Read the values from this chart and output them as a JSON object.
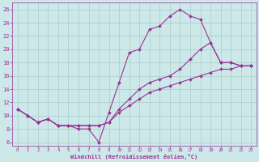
{
  "bg_color": "#cce8e8",
  "grid_color": "#aacccc",
  "line_color": "#993399",
  "xlabel": "Windchill (Refroidissement éolien,°C)",
  "xlim": [
    -0.5,
    23.5
  ],
  "ylim": [
    5.5,
    27
  ],
  "yticks": [
    6,
    8,
    10,
    12,
    14,
    16,
    18,
    20,
    22,
    24,
    26
  ],
  "xticks": [
    0,
    1,
    2,
    3,
    4,
    5,
    6,
    7,
    8,
    9,
    10,
    11,
    12,
    13,
    14,
    15,
    16,
    17,
    18,
    19,
    20,
    21,
    22,
    23
  ],
  "curve1_x": [
    0,
    1,
    2,
    3,
    4,
    5,
    6,
    7,
    8,
    9,
    10,
    11,
    12,
    13,
    14,
    15,
    16,
    17,
    18,
    19,
    20,
    21,
    22,
    23
  ],
  "curve1_y": [
    11,
    10,
    9,
    9.5,
    8.5,
    8.5,
    8,
    8,
    6,
    10.5,
    15,
    19.5,
    20,
    23,
    23.5,
    25,
    26,
    25,
    24.5,
    21,
    18,
    18,
    17.5,
    17.5
  ],
  "curve2_x": [
    0,
    1,
    2,
    3,
    4,
    5,
    6,
    7,
    8,
    9,
    10,
    11,
    12,
    13,
    14,
    15,
    16,
    17,
    18,
    19,
    20,
    21,
    22,
    23
  ],
  "curve2_y": [
    11,
    10,
    9,
    9.5,
    8.5,
    8.5,
    8.5,
    8.5,
    8.5,
    9,
    11,
    12.5,
    14,
    15,
    15.5,
    16,
    17,
    18.5,
    20,
    21,
    18,
    18,
    17.5,
    17.5
  ],
  "curve3_x": [
    0,
    1,
    2,
    3,
    4,
    5,
    6,
    7,
    8,
    9,
    10,
    11,
    12,
    13,
    14,
    15,
    16,
    17,
    18,
    19,
    20,
    21,
    22,
    23
  ],
  "curve3_y": [
    11,
    10,
    9,
    9.5,
    8.5,
    8.5,
    8.5,
    8.5,
    8.5,
    9,
    10.5,
    11.5,
    12.5,
    13.5,
    14,
    14.5,
    15,
    15.5,
    16,
    16.5,
    17,
    17,
    17.5,
    17.5
  ]
}
